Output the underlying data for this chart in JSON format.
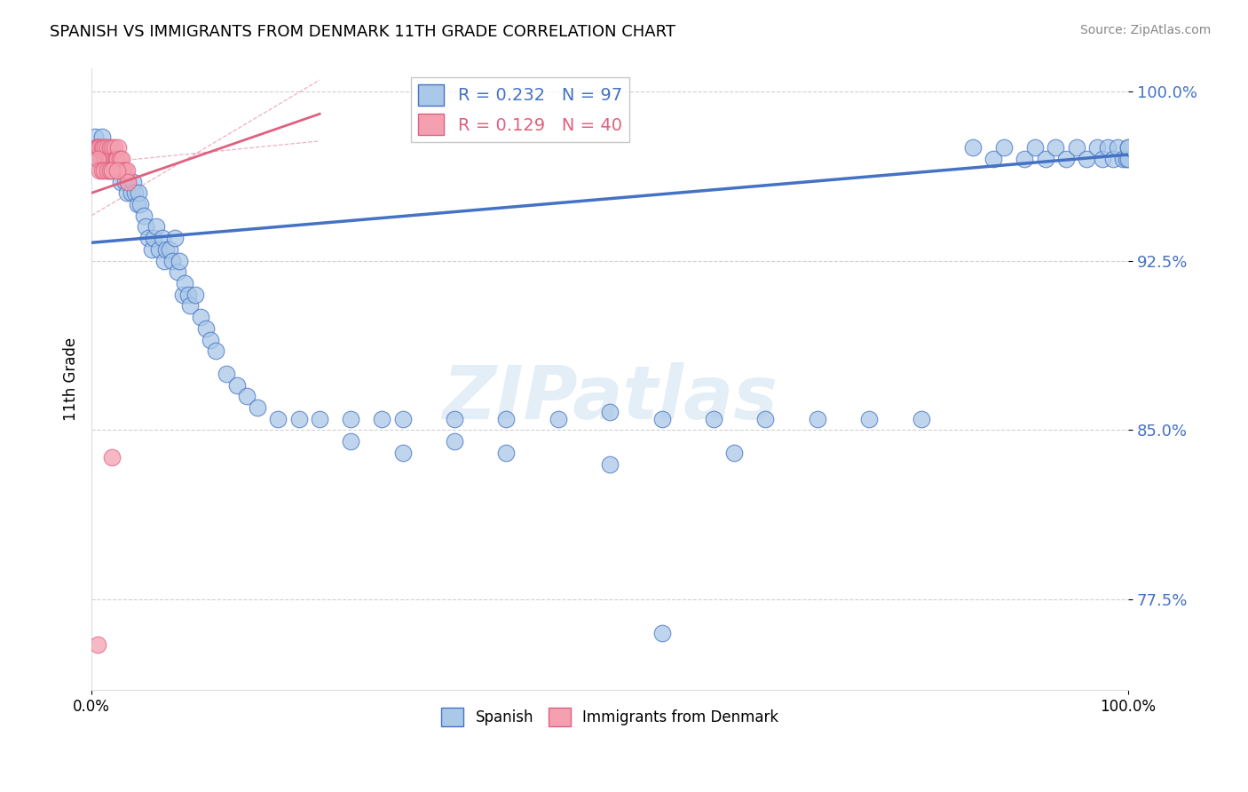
{
  "title": "SPANISH VS IMMIGRANTS FROM DENMARK 11TH GRADE CORRELATION CHART",
  "source": "Source: ZipAtlas.com",
  "ylabel": "11th Grade",
  "watermark": "ZIPatlas",
  "blue_R": 0.232,
  "blue_N": 97,
  "pink_R": 0.129,
  "pink_N": 40,
  "ytick_labels": [
    "100.0%",
    "92.5%",
    "85.0%",
    "77.5%"
  ],
  "ytick_values": [
    1.0,
    0.925,
    0.85,
    0.775
  ],
  "blue_color": "#aac8e8",
  "pink_color": "#f4a0b0",
  "blue_line_color": "#4472c4",
  "pink_line_color": "#e06080",
  "background_color": "#ffffff",
  "grid_color": "#cccccc",
  "blue_scatter_x": [
    0.003,
    0.005,
    0.006,
    0.008,
    0.01,
    0.012,
    0.014,
    0.015,
    0.016,
    0.018,
    0.02,
    0.022,
    0.024,
    0.025,
    0.027,
    0.028,
    0.03,
    0.032,
    0.034,
    0.035,
    0.038,
    0.04,
    0.042,
    0.044,
    0.045,
    0.047,
    0.05,
    0.052,
    0.055,
    0.058,
    0.06,
    0.062,
    0.065,
    0.068,
    0.07,
    0.072,
    0.075,
    0.078,
    0.08,
    0.083,
    0.085,
    0.088,
    0.09,
    0.093,
    0.095,
    0.1,
    0.105,
    0.11,
    0.115,
    0.12,
    0.13,
    0.14,
    0.15,
    0.16,
    0.18,
    0.2,
    0.22,
    0.25,
    0.28,
    0.3,
    0.35,
    0.4,
    0.45,
    0.5,
    0.55,
    0.6,
    0.65,
    0.7,
    0.75,
    0.8,
    0.85,
    0.87,
    0.88,
    0.9,
    0.91,
    0.92,
    0.93,
    0.94,
    0.95,
    0.96,
    0.97,
    0.975,
    0.98,
    0.985,
    0.99,
    0.995,
    0.998,
    1.0,
    1.0,
    1.0,
    0.25,
    0.3,
    0.35,
    0.4,
    0.5,
    0.55,
    0.62
  ],
  "blue_scatter_y": [
    0.98,
    0.975,
    0.97,
    0.975,
    0.98,
    0.97,
    0.975,
    0.97,
    0.965,
    0.97,
    0.965,
    0.97,
    0.965,
    0.97,
    0.965,
    0.96,
    0.965,
    0.96,
    0.955,
    0.96,
    0.955,
    0.96,
    0.955,
    0.95,
    0.955,
    0.95,
    0.945,
    0.94,
    0.935,
    0.93,
    0.935,
    0.94,
    0.93,
    0.935,
    0.925,
    0.93,
    0.93,
    0.925,
    0.935,
    0.92,
    0.925,
    0.91,
    0.915,
    0.91,
    0.905,
    0.91,
    0.9,
    0.895,
    0.89,
    0.885,
    0.875,
    0.87,
    0.865,
    0.86,
    0.855,
    0.855,
    0.855,
    0.855,
    0.855,
    0.855,
    0.855,
    0.855,
    0.855,
    0.858,
    0.855,
    0.855,
    0.855,
    0.855,
    0.855,
    0.855,
    0.975,
    0.97,
    0.975,
    0.97,
    0.975,
    0.97,
    0.975,
    0.97,
    0.975,
    0.97,
    0.975,
    0.97,
    0.975,
    0.97,
    0.975,
    0.97,
    0.97,
    0.97,
    0.975,
    0.975,
    0.845,
    0.84,
    0.845,
    0.84,
    0.835,
    0.76,
    0.84
  ],
  "pink_scatter_x": [
    0.004,
    0.005,
    0.006,
    0.007,
    0.008,
    0.009,
    0.01,
    0.011,
    0.012,
    0.013,
    0.014,
    0.015,
    0.016,
    0.017,
    0.018,
    0.019,
    0.02,
    0.021,
    0.022,
    0.023,
    0.024,
    0.025,
    0.026,
    0.027,
    0.028,
    0.029,
    0.03,
    0.032,
    0.034,
    0.035,
    0.006,
    0.008,
    0.01,
    0.012,
    0.015,
    0.018,
    0.02,
    0.025,
    0.02,
    0.006
  ],
  "pink_scatter_y": [
    0.975,
    0.975,
    0.975,
    0.975,
    0.975,
    0.97,
    0.975,
    0.975,
    0.97,
    0.975,
    0.97,
    0.975,
    0.97,
    0.97,
    0.975,
    0.97,
    0.975,
    0.97,
    0.975,
    0.97,
    0.97,
    0.97,
    0.975,
    0.97,
    0.965,
    0.97,
    0.965,
    0.965,
    0.965,
    0.96,
    0.97,
    0.965,
    0.965,
    0.965,
    0.965,
    0.965,
    0.965,
    0.965,
    0.838,
    0.755
  ],
  "blue_line_x": [
    0.0,
    1.0
  ],
  "blue_line_y": [
    0.933,
    0.972
  ],
  "pink_line_x": [
    0.0,
    0.22
  ],
  "pink_line_y": [
    0.955,
    0.99
  ],
  "xlim": [
    0.0,
    1.0
  ],
  "ylim": [
    0.735,
    1.01
  ]
}
